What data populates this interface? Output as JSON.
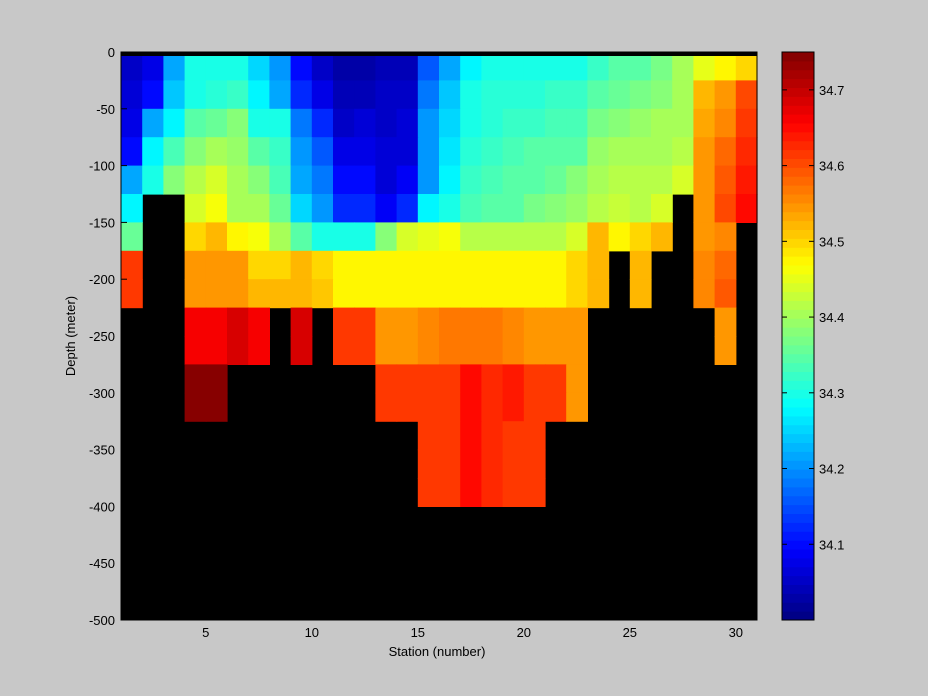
{
  "chart_data": {
    "type": "heatmap",
    "xlabel": "Station (number)",
    "ylabel": "Depth (meter)",
    "xlim": [
      1,
      31
    ],
    "ylim": [
      -500,
      0
    ],
    "x_ticks": [
      5,
      10,
      15,
      20,
      25,
      30
    ],
    "y_ticks": [
      0,
      -50,
      -100,
      -150,
      -200,
      -250,
      -300,
      -350,
      -400,
      -450,
      -500
    ],
    "colorbar": {
      "range": [
        34.0,
        34.75
      ],
      "ticks": [
        34.1,
        34.2,
        34.3,
        34.4,
        34.5,
        34.6,
        34.7
      ],
      "colormap": "jet",
      "levels": 64
    },
    "missing_color": "#000000",
    "stations": [
      1,
      2,
      3,
      4,
      5,
      6,
      7,
      8,
      9,
      10,
      11,
      12,
      13,
      14,
      15,
      16,
      17,
      18,
      19,
      20,
      21,
      22,
      23,
      24,
      25,
      26,
      27,
      28,
      29,
      30
    ],
    "depths": [
      0,
      -25,
      -50,
      -75,
      -100,
      -125,
      -150,
      -175,
      -200,
      -225,
      -250,
      -275,
      -300,
      -325,
      -350,
      -375,
      -400,
      -425,
      -450,
      -475
    ],
    "values": [
      [
        34.05,
        34.08,
        34.22,
        34.3,
        34.3,
        34.3,
        34.25,
        34.2,
        34.1,
        34.05,
        34.03,
        34.03,
        34.04,
        34.04,
        34.16,
        34.22,
        34.28,
        34.3,
        34.3,
        34.3,
        34.3,
        34.3,
        34.32,
        34.34,
        34.35,
        34.37,
        34.4,
        34.45,
        34.48,
        34.5
      ],
      [
        34.06,
        34.1,
        34.24,
        34.3,
        34.31,
        34.32,
        34.28,
        34.22,
        34.12,
        34.08,
        34.04,
        34.04,
        34.05,
        34.05,
        34.18,
        34.24,
        34.3,
        34.31,
        34.31,
        34.31,
        34.32,
        34.32,
        34.34,
        34.36,
        34.37,
        34.38,
        34.4,
        34.52,
        34.55,
        34.6
      ],
      [
        34.08,
        34.22,
        34.28,
        34.34,
        34.36,
        34.38,
        34.3,
        34.3,
        34.18,
        34.12,
        34.05,
        34.06,
        34.05,
        34.06,
        34.2,
        34.25,
        34.3,
        34.31,
        34.32,
        34.32,
        34.33,
        34.33,
        34.37,
        34.38,
        34.39,
        34.4,
        34.4,
        34.53,
        34.56,
        34.62
      ],
      [
        34.1,
        34.28,
        34.33,
        34.38,
        34.4,
        34.39,
        34.35,
        34.32,
        34.2,
        34.16,
        34.08,
        34.08,
        34.06,
        34.07,
        34.21,
        34.26,
        34.31,
        34.32,
        34.33,
        34.34,
        34.35,
        34.35,
        34.39,
        34.4,
        34.4,
        34.4,
        34.42,
        34.54,
        34.58,
        34.63
      ],
      [
        34.22,
        34.3,
        34.38,
        34.42,
        34.44,
        34.4,
        34.38,
        34.33,
        34.22,
        34.18,
        34.1,
        34.1,
        34.07,
        34.09,
        34.21,
        34.27,
        34.32,
        34.33,
        34.34,
        34.35,
        34.36,
        34.38,
        34.41,
        34.42,
        34.42,
        34.42,
        34.44,
        34.55,
        34.59,
        34.64
      ],
      [
        34.28,
        null,
        null,
        34.44,
        34.46,
        34.41,
        34.4,
        34.36,
        34.25,
        34.2,
        34.12,
        34.12,
        34.09,
        34.12,
        34.28,
        34.3,
        34.33,
        34.34,
        34.35,
        34.37,
        34.38,
        34.39,
        34.42,
        34.43,
        34.42,
        34.44,
        null,
        34.55,
        34.6,
        34.65
      ],
      [
        34.36,
        null,
        null,
        34.5,
        34.52,
        34.48,
        34.46,
        34.4,
        34.34,
        34.3,
        34.3,
        34.3,
        34.38,
        34.44,
        34.45,
        34.46,
        34.42,
        34.42,
        34.42,
        34.42,
        34.42,
        34.44,
        34.52,
        34.48,
        34.5,
        34.52,
        null,
        34.55,
        34.56,
        null
      ],
      [
        34.62,
        null,
        null,
        34.54,
        34.55,
        34.54,
        34.5,
        34.5,
        34.52,
        34.5,
        34.48,
        34.48,
        34.47,
        34.48,
        34.47,
        34.48,
        34.48,
        34.48,
        34.48,
        34.48,
        34.48,
        34.5,
        34.52,
        null,
        34.52,
        null,
        null,
        34.56,
        34.58,
        null
      ],
      [
        34.62,
        null,
        null,
        34.54,
        34.55,
        34.54,
        34.52,
        34.52,
        34.52,
        34.51,
        34.47,
        34.47,
        34.47,
        34.48,
        34.48,
        34.48,
        34.48,
        34.48,
        34.48,
        34.48,
        34.48,
        34.5,
        34.52,
        null,
        34.52,
        null,
        null,
        34.56,
        34.59,
        null
      ],
      [
        null,
        null,
        null,
        34.66,
        34.66,
        34.69,
        34.66,
        null,
        34.68,
        null,
        34.62,
        34.62,
        34.54,
        34.55,
        34.56,
        34.57,
        34.57,
        34.57,
        34.56,
        34.55,
        34.54,
        34.55,
        null,
        null,
        null,
        null,
        null,
        null,
        34.55,
        null
      ],
      [
        null,
        null,
        null,
        34.66,
        34.66,
        34.69,
        34.66,
        null,
        34.68,
        null,
        34.62,
        34.62,
        34.54,
        34.55,
        34.56,
        34.57,
        34.57,
        34.57,
        34.56,
        34.55,
        34.54,
        34.55,
        null,
        null,
        null,
        null,
        null,
        null,
        34.55,
        null
      ],
      [
        null,
        null,
        null,
        34.74,
        34.74,
        null,
        null,
        null,
        null,
        null,
        null,
        null,
        34.62,
        34.62,
        34.62,
        34.62,
        34.65,
        34.63,
        34.64,
        34.62,
        34.62,
        34.55,
        null,
        null,
        null,
        null,
        null,
        null,
        null,
        null
      ],
      [
        null,
        null,
        null,
        34.74,
        34.74,
        null,
        null,
        null,
        null,
        null,
        null,
        null,
        34.62,
        34.62,
        34.62,
        34.62,
        34.65,
        34.63,
        34.64,
        34.62,
        34.62,
        34.55,
        null,
        null,
        null,
        null,
        null,
        null,
        null,
        null
      ],
      [
        null,
        null,
        null,
        null,
        null,
        null,
        null,
        null,
        null,
        null,
        null,
        null,
        null,
        null,
        34.62,
        34.62,
        34.65,
        34.63,
        34.62,
        34.62,
        null,
        null,
        null,
        null,
        null,
        null,
        null,
        null,
        null,
        null
      ],
      [
        null,
        null,
        null,
        null,
        null,
        null,
        null,
        null,
        null,
        null,
        null,
        null,
        null,
        null,
        34.62,
        34.62,
        34.65,
        34.63,
        34.62,
        34.62,
        null,
        null,
        null,
        null,
        null,
        null,
        null,
        null,
        null,
        null
      ],
      [
        null,
        null,
        null,
        null,
        null,
        null,
        null,
        null,
        null,
        null,
        null,
        null,
        null,
        null,
        34.62,
        34.62,
        34.65,
        34.63,
        34.62,
        34.62,
        null,
        null,
        null,
        null,
        null,
        null,
        null,
        null,
        null,
        null
      ],
      [
        null,
        null,
        null,
        null,
        null,
        null,
        null,
        null,
        null,
        null,
        null,
        null,
        null,
        null,
        null,
        null,
        null,
        null,
        null,
        null,
        null,
        null,
        null,
        null,
        null,
        null,
        null,
        null,
        null,
        null
      ],
      [
        null,
        null,
        null,
        null,
        null,
        null,
        null,
        null,
        null,
        null,
        null,
        null,
        null,
        null,
        null,
        null,
        null,
        null,
        null,
        null,
        null,
        null,
        null,
        null,
        null,
        null,
        null,
        null,
        null,
        null
      ],
      [
        null,
        null,
        null,
        null,
        null,
        null,
        null,
        null,
        null,
        null,
        null,
        null,
        null,
        null,
        null,
        null,
        null,
        null,
        null,
        null,
        null,
        null,
        null,
        null,
        null,
        null,
        null,
        null,
        null,
        null
      ],
      [
        null,
        null,
        null,
        null,
        null,
        null,
        null,
        null,
        null,
        null,
        null,
        null,
        null,
        null,
        null,
        null,
        null,
        null,
        null,
        null,
        null,
        null,
        null,
        null,
        null,
        null,
        null,
        null,
        null,
        null
      ]
    ]
  }
}
